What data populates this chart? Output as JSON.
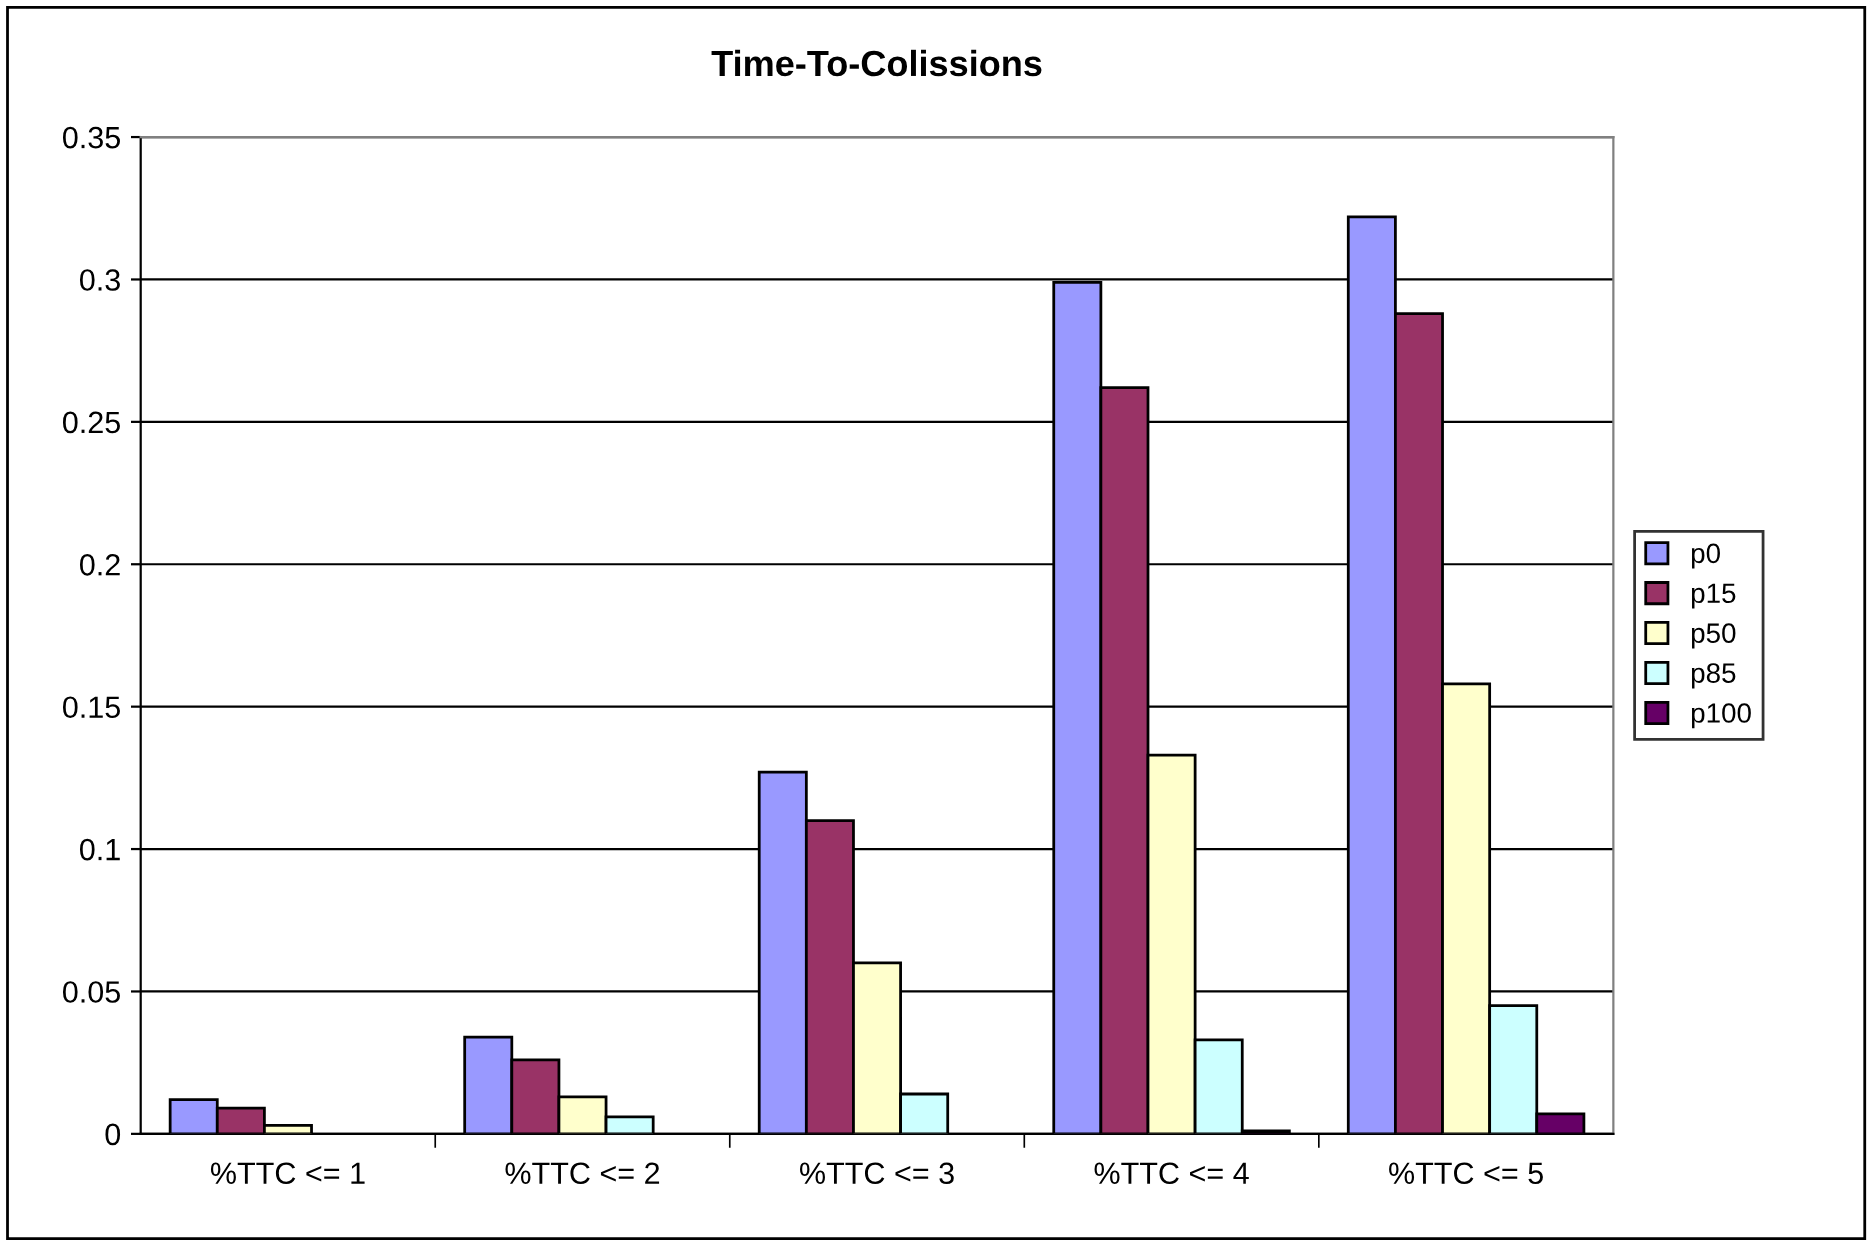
{
  "chart_data": {
    "type": "bar",
    "title": "Time-To-Colissions",
    "categories": [
      "%TTC <= 1",
      "%TTC <= 2",
      "%TTC <= 3",
      "%TTC <= 4",
      "%TTC <= 5"
    ],
    "series": [
      {
        "name": "p0",
        "color": "#9999ff",
        "values": [
          0.012,
          0.034,
          0.127,
          0.299,
          0.322
        ]
      },
      {
        "name": "p15",
        "color": "#993366",
        "values": [
          0.009,
          0.026,
          0.11,
          0.262,
          0.288
        ]
      },
      {
        "name": "p50",
        "color": "#ffffcc",
        "values": [
          0.003,
          0.013,
          0.06,
          0.133,
          0.158
        ]
      },
      {
        "name": "p85",
        "color": "#ccffff",
        "values": [
          null,
          0.006,
          0.014,
          0.033,
          0.045
        ]
      },
      {
        "name": "p100",
        "color": "#660066",
        "values": [
          null,
          null,
          null,
          0.001,
          0.007
        ]
      }
    ],
    "ylim": [
      0,
      0.35
    ],
    "yticks": [
      0,
      0.05,
      0.1,
      0.15,
      0.2,
      0.25,
      0.3,
      0.35
    ],
    "grid": "y",
    "legend": "right"
  }
}
